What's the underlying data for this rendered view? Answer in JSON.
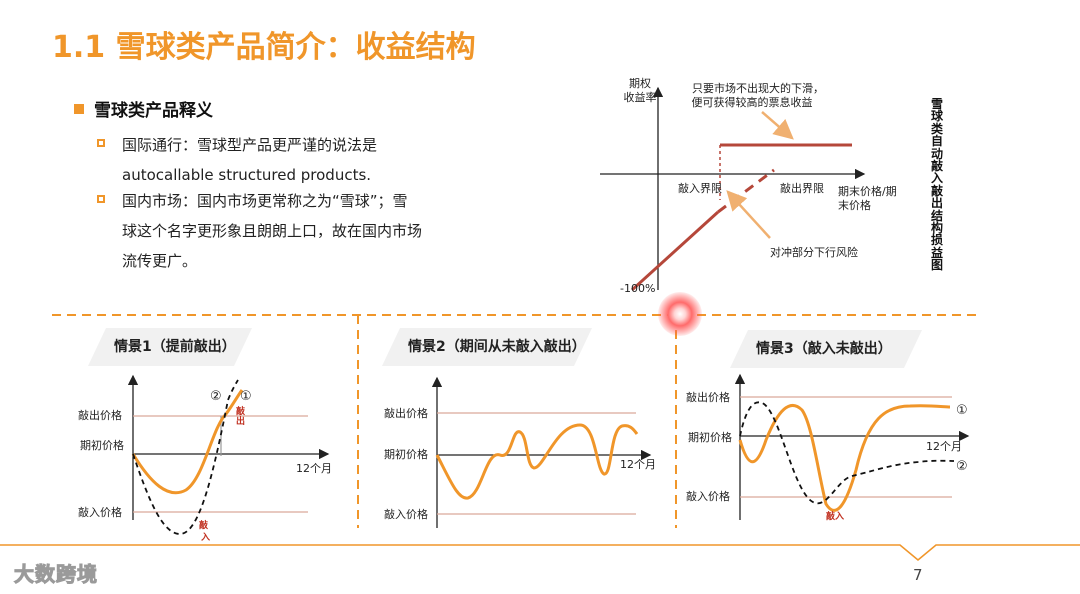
{
  "title": "1.1 雪球类产品简介：收益结构",
  "section": {
    "heading": "雪球类产品释义",
    "bullets": [
      {
        "line1": "国际通行：雪球型产品更严谨的说法是",
        "line2": "autocallable structured products."
      },
      {
        "line1": "国内市场：国内市场更常称之为“雪球”；雪",
        "line2": "球这个名字更形象且朗朗上口，故在国内市场",
        "line3": "流传更广。"
      }
    ]
  },
  "payoff": {
    "side_title": "雪球类自动敲入敲出结构损益图",
    "y_label_1": "期权",
    "y_label_2": "收益率",
    "knock_in": "敲入界限",
    "knock_out": "敲出界限",
    "x_label_1": "期末价格/期",
    "x_label_2": "末价格",
    "minus100": "-100%",
    "note_top_1": "只要市场不出现大的下滑，",
    "note_top_2": "便可获得较高的票息收益",
    "note_bottom": "对冲部分下行风险",
    "colors": {
      "solid": "#b5473a",
      "arrow": "#f0b070",
      "accent": "#f0962a"
    }
  },
  "scenarios": [
    {
      "tag": "情景1（提前敲出）",
      "ko": "敲出价格",
      "init": "期初价格",
      "ki": "敲入价格",
      "x": "12个月",
      "m1": "②",
      "m2": "①",
      "ko_mark": "敲出",
      "ki_mark": "敲入"
    },
    {
      "tag": "情景2（期间从未敲入敲出）",
      "ko": "敲出价格",
      "init": "期初价格",
      "ki": "敲入价格",
      "x": "12个月"
    },
    {
      "tag": "情景3（敲入未敲出）",
      "ko": "敲出价格",
      "init": "期初价格",
      "ki": "敲入价格",
      "x": "12个月",
      "m1": "①",
      "m2": "②",
      "ki_mark": "敲入"
    }
  ],
  "footer": {
    "logo": "大数跨境",
    "page": "7"
  }
}
